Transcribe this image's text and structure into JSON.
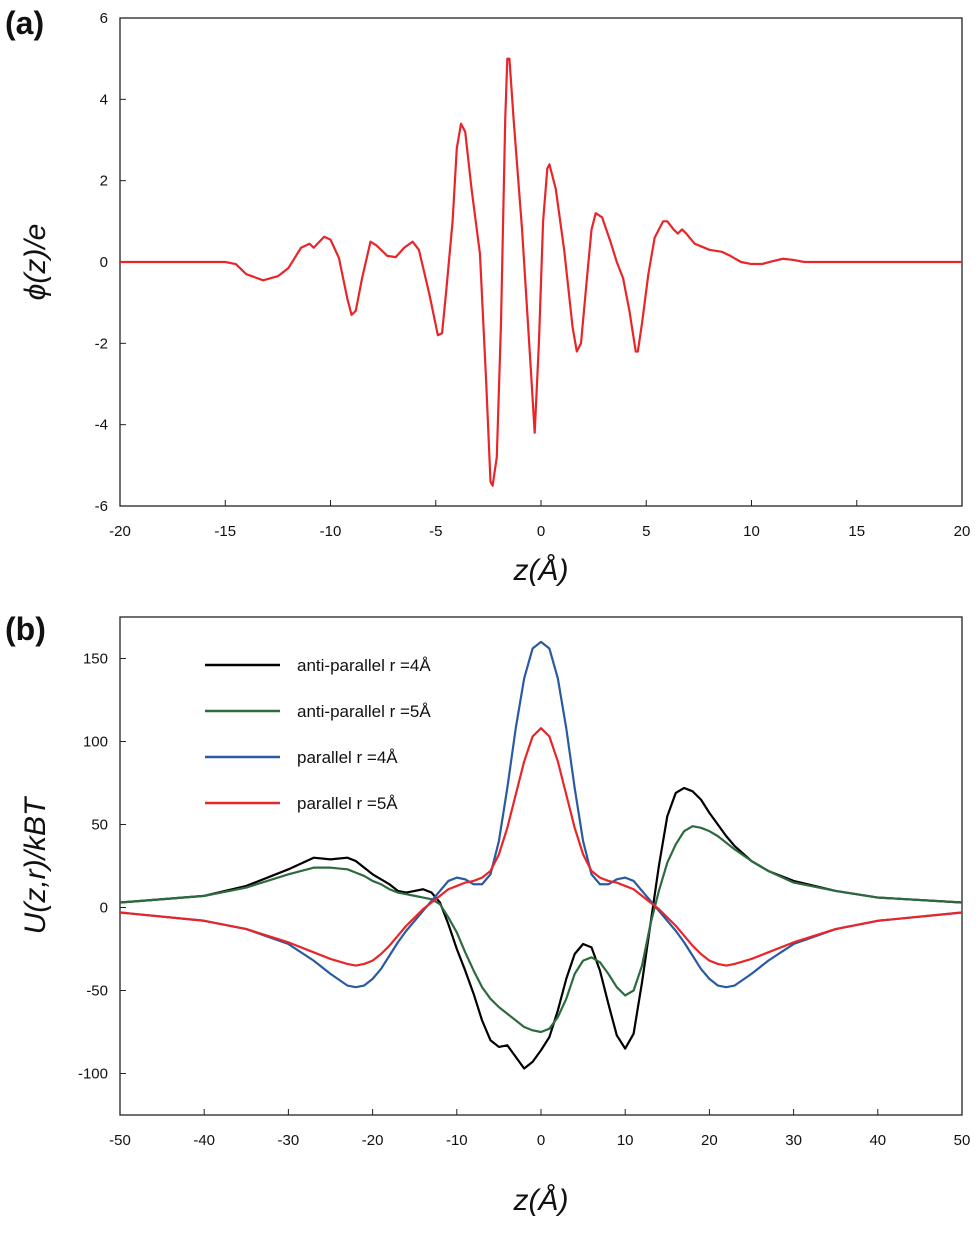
{
  "chart_data": [
    {
      "type": "line",
      "panel_label": "(a)",
      "xlabel": "z(Å)",
      "ylabel": "ϕ(z)/e",
      "xlim": [
        -20,
        20
      ],
      "xticks": [
        -20,
        -15,
        -10,
        -5,
        0,
        5,
        10,
        15,
        20
      ],
      "ylim": [
        -6,
        6
      ],
      "yticks": [
        -6,
        -4,
        -2,
        0,
        2,
        4,
        6
      ],
      "color": "#e8262a",
      "x": [
        -20,
        -15,
        -14.5,
        -14,
        -13.2,
        -12.5,
        -12,
        -11.4,
        -11,
        -10.8,
        -10.3,
        -10,
        -9.6,
        -9.2,
        -9,
        -8.8,
        -8.5,
        -8.1,
        -7.8,
        -7.3,
        -6.9,
        -6.5,
        -6.1,
        -5.8,
        -5.3,
        -4.9,
        -4.7,
        -4.5,
        -4.2,
        -4.0,
        -3.8,
        -3.6,
        -3.3,
        -2.9,
        -2.6,
        -2.4,
        -2.3,
        -2.1,
        -1.9,
        -1.7,
        -1.6,
        -1.5,
        -1.3,
        -0.9,
        -0.5,
        -0.3,
        -0.1,
        0.1,
        0.3,
        0.4,
        0.7,
        1.1,
        1.5,
        1.7,
        1.9,
        2.2,
        2.4,
        2.6,
        2.9,
        3.3,
        3.6,
        3.9,
        4.2,
        4.5,
        4.6,
        4.8,
        5.1,
        5.4,
        5.8,
        6.0,
        6.3,
        6.5,
        6.7,
        6.9,
        7.3,
        8.0,
        8.6,
        9.0,
        9.5,
        10,
        10.5,
        11,
        11.5,
        12,
        12.5,
        20
      ],
      "values": [
        0,
        0,
        -0.05,
        -0.3,
        -0.45,
        -0.35,
        -0.15,
        0.35,
        0.45,
        0.35,
        0.62,
        0.55,
        0.1,
        -0.9,
        -1.3,
        -1.2,
        -0.4,
        0.5,
        0.4,
        0.15,
        0.12,
        0.35,
        0.5,
        0.3,
        -0.8,
        -1.8,
        -1.75,
        -0.7,
        1,
        2.8,
        3.4,
        3.2,
        1.8,
        0.2,
        -3,
        -5.4,
        -5.5,
        -4.8,
        -1.5,
        3.5,
        5,
        5,
        3.5,
        0.8,
        -2.5,
        -4.2,
        -2,
        1,
        2.3,
        2.4,
        1.8,
        0.3,
        -1.6,
        -2.2,
        -2,
        -0.3,
        0.8,
        1.2,
        1.1,
        0.5,
        0,
        -0.4,
        -1.2,
        -2.2,
        -2.2,
        -1.5,
        -0.3,
        0.6,
        1.0,
        1.0,
        0.8,
        0.7,
        0.8,
        0.7,
        0.45,
        0.3,
        0.25,
        0.15,
        0,
        -0.05,
        -0.05,
        0.02,
        0.08,
        0.05,
        0,
        0
      ]
    },
    {
      "type": "line",
      "panel_label": "(b)",
      "xlabel": "z(Å)",
      "ylabel": "U(z,r)/kBT",
      "xlim": [
        -50,
        50
      ],
      "xticks": [
        -50,
        -40,
        -30,
        -20,
        -10,
        0,
        10,
        20,
        30,
        40,
        50
      ],
      "ylim": [
        -125,
        175
      ],
      "yticks": [
        -100,
        -50,
        0,
        50,
        100,
        150
      ],
      "legend": "upper left",
      "x": [
        -50,
        -40,
        -35,
        -30,
        -27,
        -25,
        -23,
        -22,
        -21,
        -20,
        -19,
        -18,
        -17,
        -16,
        -15,
        -14,
        -13,
        -12,
        -11,
        -10,
        -9,
        -8,
        -7,
        -6,
        -5,
        -4,
        -3,
        -2,
        -1,
        0,
        1,
        2,
        3,
        4,
        5,
        6,
        7,
        8,
        9,
        10,
        11,
        12,
        13,
        14,
        15,
        16,
        17,
        18,
        19,
        20,
        21,
        22,
        23,
        25,
        27,
        30,
        35,
        40,
        50
      ],
      "series": [
        {
          "name": "anti-parallel r =4Å",
          "color": "#000000",
          "values": [
            3,
            7,
            13,
            23,
            30,
            29,
            30,
            28,
            24,
            20,
            17,
            14,
            10,
            9,
            10,
            11,
            9,
            3,
            -10,
            -25,
            -38,
            -52,
            -68,
            -80,
            -84,
            -83,
            -90,
            -97,
            -93,
            -86,
            -78,
            -62,
            -43,
            -28,
            -22,
            -24,
            -38,
            -58,
            -77,
            -85,
            -76,
            -45,
            -10,
            25,
            55,
            69,
            72,
            70,
            65,
            57,
            50,
            43,
            37,
            28,
            22,
            16,
            10,
            6,
            3
          ]
        },
        {
          "name": "anti-parallel r =5Å",
          "color": "#2d6b3f",
          "values": [
            3,
            7,
            12,
            20,
            24,
            24,
            23,
            21,
            19,
            16,
            14,
            11,
            9,
            8,
            7,
            6,
            5,
            2,
            -6,
            -15,
            -27,
            -38,
            -48,
            -55,
            -60,
            -64,
            -68,
            -72,
            -74,
            -75,
            -73,
            -66,
            -55,
            -40,
            -32,
            -30,
            -33,
            -40,
            -48,
            -53,
            -50,
            -35,
            -10,
            10,
            27,
            38,
            46,
            49,
            48,
            46,
            43,
            39,
            35,
            28,
            22,
            15,
            10,
            6,
            3
          ]
        },
        {
          "name": "parallel r =4Å",
          "color": "#2a5aa0",
          "values": [
            -3,
            -8,
            -13,
            -22,
            -32,
            -40,
            -47,
            -48,
            -47,
            -43,
            -37,
            -29,
            -21,
            -14,
            -8,
            -2,
            4,
            10,
            16,
            18,
            17,
            14,
            14,
            20,
            40,
            72,
            108,
            138,
            156,
            160,
            156,
            138,
            108,
            72,
            40,
            20,
            14,
            14,
            17,
            18,
            16,
            10,
            4,
            -2,
            -8,
            -14,
            -21,
            -29,
            -37,
            -43,
            -47,
            -48,
            -47,
            -40,
            -32,
            -22,
            -13,
            -8,
            -3
          ]
        },
        {
          "name": "parallel r =5Å",
          "color": "#e8262a",
          "values": [
            -3,
            -8,
            -13,
            -21,
            -27,
            -31,
            -34,
            -35,
            -34,
            -32,
            -28,
            -23,
            -17,
            -11,
            -6,
            -1,
            3,
            7,
            11,
            13,
            15,
            16,
            18,
            22,
            32,
            48,
            68,
            88,
            103,
            108,
            103,
            88,
            68,
            48,
            32,
            22,
            18,
            16,
            15,
            13,
            11,
            7,
            3,
            -1,
            -6,
            -11,
            -17,
            -23,
            -28,
            -32,
            -34,
            -35,
            -34,
            -31,
            -27,
            -21,
            -13,
            -8,
            -3
          ]
        }
      ]
    }
  ]
}
